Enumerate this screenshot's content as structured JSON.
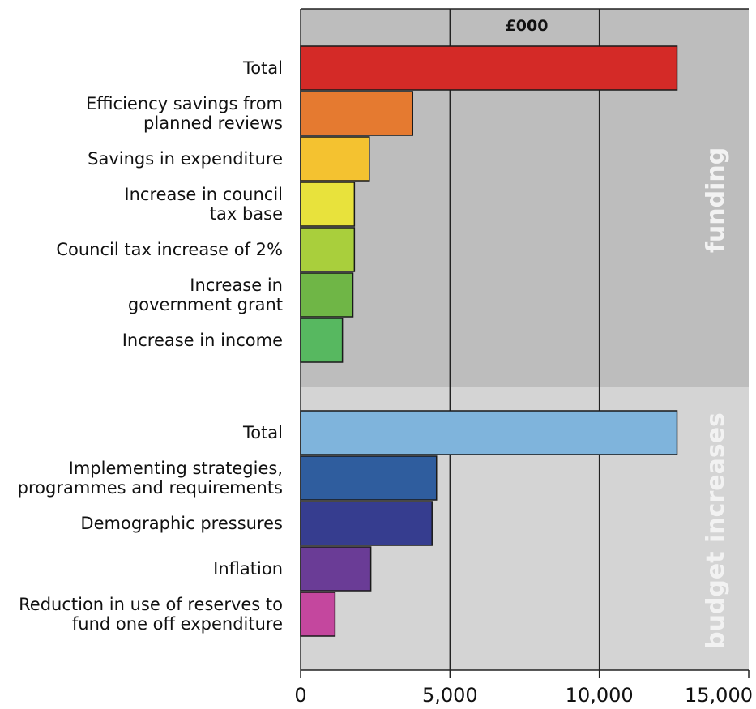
{
  "chart_data": {
    "type": "bar",
    "orientation": "horizontal",
    "unit_label": "£000",
    "xlim": [
      0,
      15000
    ],
    "x_ticks": [
      {
        "value": 0,
        "label": "0"
      },
      {
        "value": 5000,
        "label": "5,000"
      },
      {
        "value": 10000,
        "label": "10,000"
      },
      {
        "value": 15000,
        "label": "15,000"
      }
    ],
    "gridlines": [
      5000,
      10000
    ],
    "groups": [
      {
        "name": "funding",
        "items": [
          {
            "label": [
              "Total"
            ],
            "value": 12600,
            "color": "#d42a27"
          },
          {
            "label": [
              "Efficiency savings from",
              "planned reviews"
            ],
            "value": 3750,
            "color": "#e57a30"
          },
          {
            "label": [
              "Savings in expenditure"
            ],
            "value": 2300,
            "color": "#f4c230"
          },
          {
            "label": [
              "Increase in council",
              "tax base"
            ],
            "value": 1800,
            "color": "#e8e23c"
          },
          {
            "label": [
              "Council tax increase of 2%"
            ],
            "value": 1800,
            "color": "#a9cf3c"
          },
          {
            "label": [
              "Increase in",
              "government grant"
            ],
            "value": 1750,
            "color": "#6fb646"
          },
          {
            "label": [
              "Increase in income"
            ],
            "value": 1400,
            "color": "#57b860"
          }
        ]
      },
      {
        "name": "budget increases",
        "items": [
          {
            "label": [
              "Total"
            ],
            "value": 12600,
            "color": "#7fb4dc"
          },
          {
            "label": [
              "Implementing strategies,",
              "programmes and requirements"
            ],
            "value": 4550,
            "color": "#2f5d9e"
          },
          {
            "label": [
              "Demographic pressures"
            ],
            "value": 4400,
            "color": "#363d8f"
          },
          {
            "label": [
              "Inflation"
            ],
            "value": 2350,
            "color": "#6a3c96"
          },
          {
            "label": [
              "Reduction in use of reserves to",
              "fund one off expenditure"
            ],
            "value": 1150,
            "color": "#c4479e"
          }
        ]
      }
    ],
    "grid": true,
    "legend": "none"
  }
}
